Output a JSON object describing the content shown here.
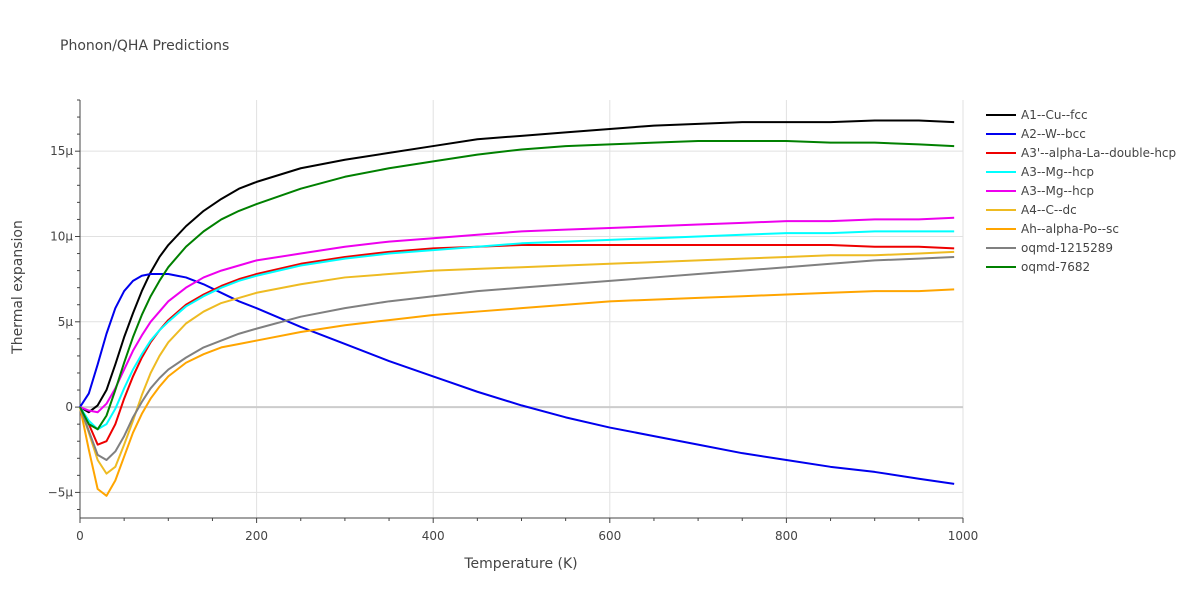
{
  "chart_data": {
    "type": "line",
    "title": "Phonon/QHA Predictions",
    "xlabel": "Temperature (K)",
    "ylabel": "Thermal expansion",
    "xlim": [
      0,
      1000
    ],
    "ylim": [
      -6.5e-06,
      1.8e-05
    ],
    "grid": true,
    "legend_position": "right",
    "x_ticks": [
      {
        "value": 0,
        "label": "0"
      },
      {
        "value": 200,
        "label": "200"
      },
      {
        "value": 400,
        "label": "400"
      },
      {
        "value": 600,
        "label": "600"
      },
      {
        "value": 800,
        "label": "800"
      },
      {
        "value": 1000,
        "label": "1000"
      }
    ],
    "y_ticks": [
      {
        "value": -5e-06,
        "label": "−5μ"
      },
      {
        "value": 0,
        "label": "0"
      },
      {
        "value": 5e-06,
        "label": "5μ"
      },
      {
        "value": 1e-05,
        "label": "10μ"
      },
      {
        "value": 1.5e-05,
        "label": "15μ"
      }
    ],
    "series": [
      {
        "name": "A1--Cu--fcc",
        "color": "#000000",
        "x": [
          0,
          10,
          20,
          30,
          40,
          50,
          60,
          70,
          80,
          90,
          100,
          120,
          140,
          160,
          180,
          200,
          250,
          300,
          350,
          400,
          450,
          500,
          550,
          600,
          650,
          700,
          750,
          800,
          850,
          900,
          950,
          990
        ],
        "y": [
          0,
          -3e-07,
          1e-07,
          1e-06,
          2.5e-06,
          4.1e-06,
          5.5e-06,
          6.8e-06,
          7.9e-06,
          8.8e-06,
          9.5e-06,
          1.06e-05,
          1.15e-05,
          1.22e-05,
          1.28e-05,
          1.32e-05,
          1.4e-05,
          1.45e-05,
          1.49e-05,
          1.53e-05,
          1.57e-05,
          1.59e-05,
          1.61e-05,
          1.63e-05,
          1.65e-05,
          1.66e-05,
          1.67e-05,
          1.67e-05,
          1.67e-05,
          1.68e-05,
          1.68e-05,
          1.67e-05
        ]
      },
      {
        "name": "A2--W--bcc",
        "color": "#0000ee",
        "x": [
          0,
          10,
          20,
          30,
          40,
          50,
          60,
          70,
          80,
          90,
          100,
          110,
          120,
          140,
          160,
          180,
          200,
          250,
          300,
          350,
          400,
          450,
          500,
          550,
          600,
          650,
          700,
          750,
          800,
          850,
          900,
          950,
          990
        ],
        "y": [
          0,
          8e-07,
          2.5e-06,
          4.3e-06,
          5.8e-06,
          6.8e-06,
          7.4e-06,
          7.7e-06,
          7.8e-06,
          7.8e-06,
          7.8e-06,
          7.7e-06,
          7.6e-06,
          7.2e-06,
          6.7e-06,
          6.2e-06,
          5.8e-06,
          4.7e-06,
          3.7e-06,
          2.7e-06,
          1.8e-06,
          9e-07,
          1e-07,
          -6e-07,
          -1.2e-06,
          -1.7e-06,
          -2.2e-06,
          -2.7e-06,
          -3.1e-06,
          -3.5e-06,
          -3.8e-06,
          -4.2e-06,
          -4.5e-06
        ]
      },
      {
        "name": "A3'--alpha-La--double-hcp",
        "color": "#ee0000",
        "x": [
          0,
          10,
          20,
          30,
          40,
          50,
          60,
          70,
          80,
          90,
          100,
          120,
          140,
          160,
          180,
          200,
          250,
          300,
          350,
          400,
          450,
          500,
          550,
          600,
          650,
          700,
          750,
          800,
          850,
          900,
          950,
          990
        ],
        "y": [
          0,
          -1e-06,
          -2.2e-06,
          -2e-06,
          -1e-06,
          5e-07,
          1.8e-06,
          2.9e-06,
          3.8e-06,
          4.5e-06,
          5.1e-06,
          6e-06,
          6.6e-06,
          7.1e-06,
          7.5e-06,
          7.8e-06,
          8.4e-06,
          8.8e-06,
          9.1e-06,
          9.3e-06,
          9.4e-06,
          9.5e-06,
          9.5e-06,
          9.5e-06,
          9.5e-06,
          9.5e-06,
          9.5e-06,
          9.5e-06,
          9.5e-06,
          9.4e-06,
          9.4e-06,
          9.3e-06
        ]
      },
      {
        "name": "A3--Mg--hcp",
        "color": "#00ffff",
        "x": [
          0,
          10,
          20,
          30,
          40,
          50,
          60,
          70,
          80,
          90,
          100,
          120,
          140,
          160,
          180,
          200,
          250,
          300,
          350,
          400,
          450,
          500,
          550,
          600,
          650,
          700,
          750,
          800,
          850,
          900,
          950,
          990
        ],
        "y": [
          0,
          -8e-07,
          -1.3e-06,
          -1e-06,
          -1e-07,
          1.1e-06,
          2.2e-06,
          3.1e-06,
          3.9e-06,
          4.5e-06,
          5e-06,
          5.9e-06,
          6.5e-06,
          7e-06,
          7.4e-06,
          7.7e-06,
          8.3e-06,
          8.7e-06,
          9e-06,
          9.2e-06,
          9.4e-06,
          9.6e-06,
          9.7e-06,
          9.8e-06,
          9.9e-06,
          1e-05,
          1.01e-05,
          1.02e-05,
          1.02e-05,
          1.03e-05,
          1.03e-05,
          1.03e-05
        ]
      },
      {
        "name": "A3--Mg--hcp",
        "color": "#ee00ee",
        "x": [
          0,
          10,
          20,
          30,
          40,
          50,
          60,
          70,
          80,
          90,
          100,
          120,
          140,
          160,
          180,
          200,
          250,
          300,
          350,
          400,
          450,
          500,
          550,
          600,
          650,
          700,
          750,
          800,
          850,
          900,
          950,
          990
        ],
        "y": [
          0,
          -2e-07,
          -3e-07,
          2e-07,
          1.1e-06,
          2.2e-06,
          3.3e-06,
          4.2e-06,
          5e-06,
          5.6e-06,
          6.2e-06,
          7e-06,
          7.6e-06,
          8e-06,
          8.3e-06,
          8.6e-06,
          9e-06,
          9.4e-06,
          9.7e-06,
          9.9e-06,
          1.01e-05,
          1.03e-05,
          1.04e-05,
          1.05e-05,
          1.06e-05,
          1.07e-05,
          1.08e-05,
          1.09e-05,
          1.09e-05,
          1.1e-05,
          1.1e-05,
          1.11e-05
        ]
      },
      {
        "name": "A4--C--dc",
        "color": "#eebb22",
        "x": [
          0,
          10,
          20,
          30,
          40,
          50,
          60,
          70,
          80,
          90,
          100,
          120,
          140,
          160,
          180,
          200,
          250,
          300,
          350,
          400,
          450,
          500,
          550,
          600,
          650,
          700,
          750,
          800,
          850,
          900,
          950,
          990
        ],
        "y": [
          0,
          -1.5e-06,
          -3.1e-06,
          -3.9e-06,
          -3.5e-06,
          -2.2e-06,
          -8e-07,
          7e-07,
          2e-06,
          3e-06,
          3.8e-06,
          4.9e-06,
          5.6e-06,
          6.1e-06,
          6.4e-06,
          6.7e-06,
          7.2e-06,
          7.6e-06,
          7.8e-06,
          8e-06,
          8.1e-06,
          8.2e-06,
          8.3e-06,
          8.4e-06,
          8.5e-06,
          8.6e-06,
          8.7e-06,
          8.8e-06,
          8.9e-06,
          8.9e-06,
          9e-06,
          9.1e-06
        ]
      },
      {
        "name": "Ah--alpha-Po--sc",
        "color": "#ffa500",
        "x": [
          0,
          10,
          20,
          30,
          40,
          50,
          60,
          70,
          80,
          90,
          100,
          120,
          140,
          160,
          180,
          200,
          250,
          300,
          350,
          400,
          450,
          500,
          550,
          600,
          650,
          700,
          750,
          800,
          850,
          900,
          950,
          990
        ],
        "y": [
          0,
          -2.5e-06,
          -4.8e-06,
          -5.2e-06,
          -4.3e-06,
          -2.9e-06,
          -1.5e-06,
          -4e-07,
          5e-07,
          1.2e-06,
          1.8e-06,
          2.6e-06,
          3.1e-06,
          3.5e-06,
          3.7e-06,
          3.9e-06,
          4.4e-06,
          4.8e-06,
          5.1e-06,
          5.4e-06,
          5.6e-06,
          5.8e-06,
          6e-06,
          6.2e-06,
          6.3e-06,
          6.4e-06,
          6.5e-06,
          6.6e-06,
          6.7e-06,
          6.8e-06,
          6.8e-06,
          6.9e-06
        ]
      },
      {
        "name": "oqmd-1215289",
        "color": "#808080",
        "x": [
          0,
          10,
          20,
          30,
          40,
          50,
          60,
          70,
          80,
          90,
          100,
          120,
          140,
          160,
          180,
          200,
          250,
          300,
          350,
          400,
          450,
          500,
          550,
          600,
          650,
          700,
          750,
          800,
          850,
          900,
          950,
          990
        ],
        "y": [
          0,
          -1.4e-06,
          -2.8e-06,
          -3.1e-06,
          -2.6e-06,
          -1.7e-06,
          -6e-07,
          3e-07,
          1.1e-06,
          1.7e-06,
          2.2e-06,
          2.9e-06,
          3.5e-06,
          3.9e-06,
          4.3e-06,
          4.6e-06,
          5.3e-06,
          5.8e-06,
          6.2e-06,
          6.5e-06,
          6.8e-06,
          7e-06,
          7.2e-06,
          7.4e-06,
          7.6e-06,
          7.8e-06,
          8e-06,
          8.2e-06,
          8.4e-06,
          8.6e-06,
          8.7e-06,
          8.8e-06
        ]
      },
      {
        "name": "oqmd-7682",
        "color": "#008000",
        "x": [
          0,
          10,
          20,
          30,
          40,
          50,
          60,
          70,
          80,
          90,
          100,
          120,
          140,
          160,
          180,
          200,
          250,
          300,
          350,
          400,
          450,
          500,
          550,
          600,
          650,
          700,
          750,
          800,
          850,
          900,
          950,
          990
        ],
        "y": [
          0,
          -1e-06,
          -1.3e-06,
          -5e-07,
          1e-06,
          2.6e-06,
          4.1e-06,
          5.4e-06,
          6.5e-06,
          7.4e-06,
          8.2e-06,
          9.4e-06,
          1.03e-05,
          1.1e-05,
          1.15e-05,
          1.19e-05,
          1.28e-05,
          1.35e-05,
          1.4e-05,
          1.44e-05,
          1.48e-05,
          1.51e-05,
          1.53e-05,
          1.54e-05,
          1.55e-05,
          1.56e-05,
          1.56e-05,
          1.56e-05,
          1.55e-05,
          1.55e-05,
          1.54e-05,
          1.53e-05
        ]
      }
    ]
  }
}
